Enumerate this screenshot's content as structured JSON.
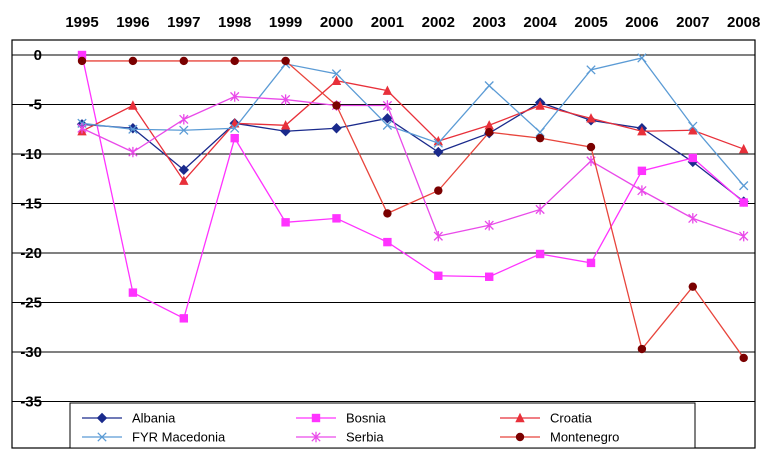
{
  "chart_data": {
    "type": "line",
    "title": "",
    "xlabel": "",
    "ylabel": "",
    "x": [
      "1995",
      "1996",
      "1997",
      "1998",
      "1999",
      "2000",
      "2001",
      "2002",
      "2003",
      "2004",
      "2005",
      "2006",
      "2007",
      "2008"
    ],
    "y_ticks": [
      "0",
      "-5",
      "-10",
      "-15",
      "-20",
      "-25",
      "-30",
      "-35"
    ],
    "ylim": [
      -35,
      0
    ],
    "grid": "horizontal",
    "legend_position": "bottom",
    "series": [
      {
        "name": "Albania",
        "color": "#1a2a8c",
        "marker": "diamond",
        "values": [
          -7.0,
          -7.4,
          -11.6,
          -6.9,
          -7.7,
          -7.4,
          -6.4,
          -9.8,
          -7.9,
          -4.8,
          -6.6,
          -7.4,
          -10.8,
          -14.8
        ]
      },
      {
        "name": "Bosnia",
        "color": "#ff33ff",
        "marker": "square",
        "values": [
          0.0,
          -24.0,
          -26.6,
          -8.4,
          -16.9,
          -16.5,
          -18.9,
          -22.3,
          -22.4,
          -20.1,
          -21.0,
          -11.7,
          -10.4,
          -14.9
        ]
      },
      {
        "name": "Croatia",
        "color": "#e8303a",
        "marker": "triangle",
        "values": [
          -7.7,
          -5.1,
          -12.7,
          -6.9,
          -7.1,
          -2.6,
          -3.6,
          -8.7,
          -7.1,
          -5.1,
          -6.4,
          -7.7,
          -7.6,
          -9.5
        ]
      },
      {
        "name": "FYR Macedonia",
        "color": "#5b9bd5",
        "marker": "x",
        "values": [
          -6.9,
          -7.5,
          -7.6,
          -7.4,
          -0.9,
          -1.9,
          -7.1,
          -8.9,
          -3.1,
          -7.8,
          -1.5,
          -0.3,
          -7.2,
          -13.2
        ]
      },
      {
        "name": "Serbia",
        "color": "#e94ae9",
        "marker": "star",
        "values": [
          -7.4,
          -9.8,
          -6.5,
          -4.2,
          -4.5,
          -5.1,
          -5.1,
          -18.3,
          -17.2,
          -15.6,
          -10.7,
          -13.7,
          -16.5,
          -18.3
        ]
      },
      {
        "name": "Montenegro",
        "color": "#7a0000",
        "line_color": "#e8453c",
        "marker": "circle",
        "values": [
          -0.6,
          -0.6,
          -0.6,
          -0.6,
          -0.6,
          -5.1,
          -16.0,
          -13.7,
          -7.8,
          -8.4,
          -9.3,
          -29.7,
          -23.4,
          -30.6
        ]
      }
    ]
  }
}
